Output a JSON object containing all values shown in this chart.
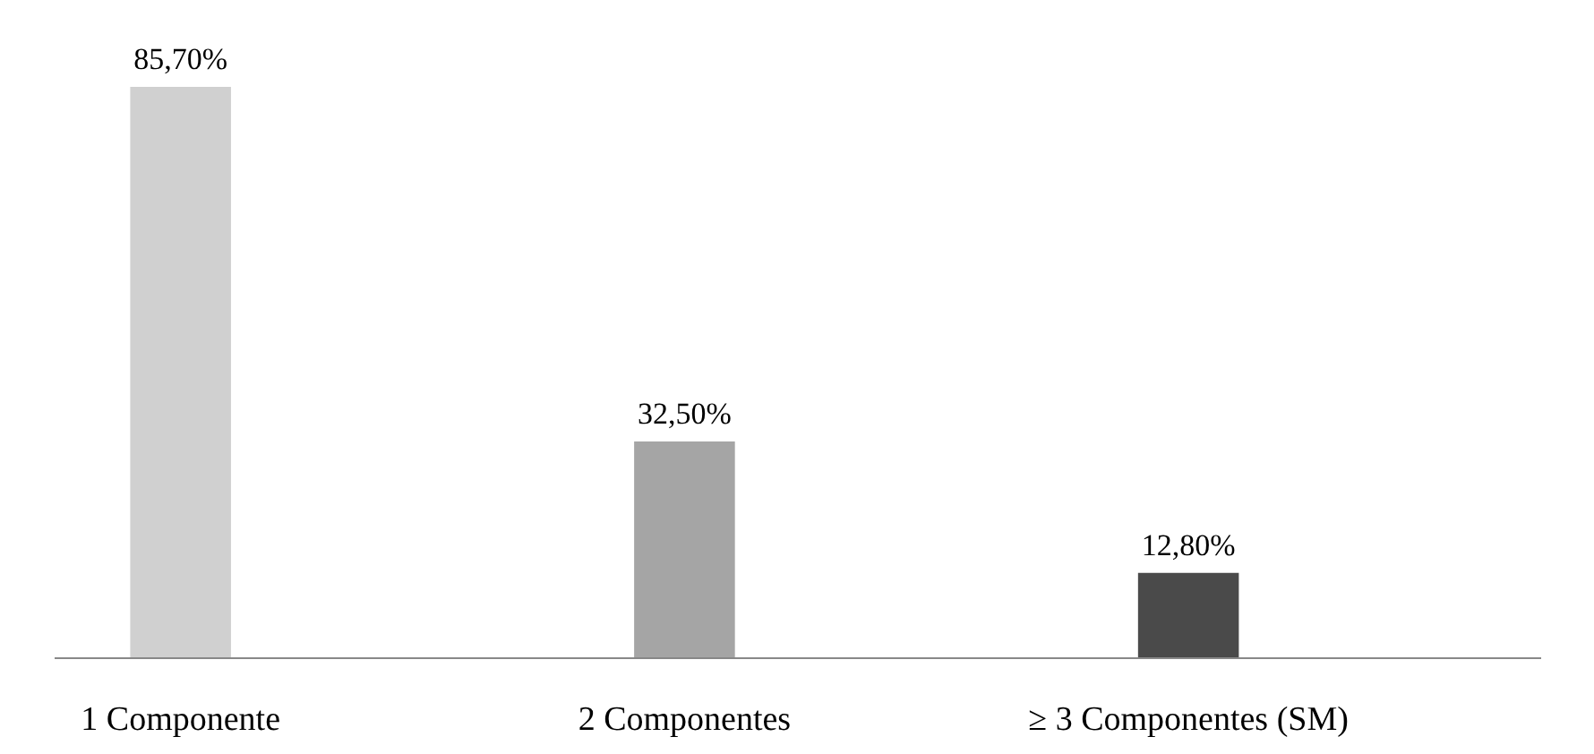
{
  "chart_data": {
    "type": "bar",
    "categories": [
      "1 Componente",
      "2 Componentes",
      "≥ 3 Componentes (SM)"
    ],
    "values": [
      85.7,
      32.5,
      12.8
    ],
    "colors": [
      "#d0d0d0",
      "#a5a5a5",
      "#4a4a4a"
    ],
    "value_labels": [
      "85,70%",
      "32,50%",
      "12,80%"
    ],
    "tick_labels": "x",
    "grid": false
  }
}
